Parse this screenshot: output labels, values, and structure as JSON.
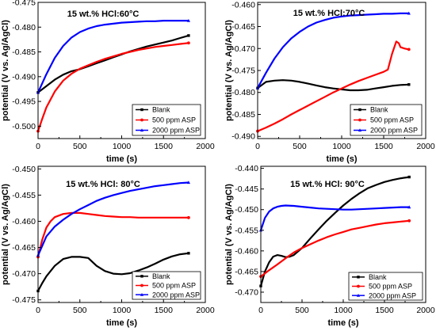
{
  "figure": {
    "colors": {
      "blank": "#000000",
      "asp500": "#ff0000",
      "asp2000": "#0000ff",
      "axis": "#000000"
    }
  },
  "chart_data": [
    {
      "type": "line",
      "title": "15 wt.% HCl:60°C",
      "xlabel": "time (s)",
      "ylabel": "potential (V vs. Ag/AgCl)",
      "xlim": [
        0,
        2000
      ],
      "ylim": [
        -0.5025,
        -0.475
      ],
      "xticks": [
        0,
        500,
        1000,
        1500,
        2000
      ],
      "yticks": [
        -0.5,
        -0.495,
        -0.49,
        -0.485,
        -0.48,
        -0.475
      ],
      "ytick_labels": [
        "-0.500",
        "-0.495",
        "-0.490",
        "-0.485",
        "-0.480",
        "-0.475"
      ],
      "legend_position": "bottom-right",
      "series": [
        {
          "name": "Blank",
          "color": "#000000",
          "x": [
            0,
            100,
            200,
            300,
            400,
            500,
            600,
            700,
            800,
            900,
            1000,
            1100,
            1200,
            1300,
            1400,
            1500,
            1600,
            1700,
            1800
          ],
          "y": [
            -0.4932,
            -0.4919,
            -0.4906,
            -0.4896,
            -0.4889,
            -0.4885,
            -0.4879,
            -0.4873,
            -0.4867,
            -0.4861,
            -0.4855,
            -0.4849,
            -0.4844,
            -0.4839,
            -0.4835,
            -0.4831,
            -0.4827,
            -0.4822,
            -0.4817
          ]
        },
        {
          "name": "500 ppm ASP",
          "color": "#ff0000",
          "x": [
            0,
            50,
            100,
            200,
            300,
            400,
            500,
            600,
            700,
            800,
            900,
            1000,
            1100,
            1200,
            1300,
            1400,
            1500,
            1600,
            1700,
            1800
          ],
          "y": [
            -0.501,
            -0.4985,
            -0.4962,
            -0.493,
            -0.4908,
            -0.4894,
            -0.4884,
            -0.4877,
            -0.487,
            -0.4864,
            -0.4859,
            -0.4854,
            -0.485,
            -0.4846,
            -0.4843,
            -0.484,
            -0.4838,
            -0.4836,
            -0.4834,
            -0.4832
          ]
        },
        {
          "name": "2000 ppm ASP",
          "color": "#0000ff",
          "x": [
            0,
            100,
            200,
            300,
            400,
            500,
            600,
            700,
            800,
            900,
            1000,
            1100,
            1200,
            1300,
            1400,
            1500,
            1600,
            1700,
            1800
          ],
          "y": [
            -0.4932,
            -0.4895,
            -0.4862,
            -0.4838,
            -0.4821,
            -0.481,
            -0.4803,
            -0.4798,
            -0.4795,
            -0.4793,
            -0.4791,
            -0.479,
            -0.4789,
            -0.4788,
            -0.4788,
            -0.4787,
            -0.4787,
            -0.4787,
            -0.4787
          ]
        }
      ]
    },
    {
      "type": "line",
      "title": "15 wt.% HCl:70°C",
      "xlabel": "time (s)",
      "ylabel": "potential (V vs. Ag/AgCl)",
      "xlim": [
        0,
        2000
      ],
      "ylim": [
        -0.4905,
        -0.4595
      ],
      "xticks": [
        0,
        500,
        1000,
        1500,
        2000
      ],
      "yticks": [
        -0.49,
        -0.485,
        -0.48,
        -0.475,
        -0.47,
        -0.465,
        -0.46
      ],
      "ytick_labels": [
        "-0.490",
        "-0.485",
        "-0.480",
        "-0.475",
        "-0.470",
        "-0.465",
        "-0.460"
      ],
      "legend_position": "bottom-right",
      "series": [
        {
          "name": "Blank",
          "color": "#000000",
          "x": [
            0,
            100,
            200,
            300,
            400,
            500,
            600,
            700,
            800,
            900,
            1000,
            1100,
            1200,
            1300,
            1400,
            1500,
            1600,
            1700,
            1800
          ],
          "y": [
            -0.479,
            -0.4776,
            -0.4773,
            -0.4772,
            -0.4773,
            -0.4776,
            -0.478,
            -0.4784,
            -0.4788,
            -0.4791,
            -0.4793,
            -0.4795,
            -0.4795,
            -0.4794,
            -0.4791,
            -0.4788,
            -0.4785,
            -0.4783,
            -0.4782
          ]
        },
        {
          "name": "500 ppm ASP",
          "color": "#ff0000",
          "x": [
            0,
            100,
            200,
            300,
            400,
            500,
            600,
            700,
            800,
            900,
            1000,
            1100,
            1200,
            1300,
            1400,
            1500,
            1550,
            1600,
            1650,
            1680,
            1700,
            1750,
            1800
          ],
          "y": [
            -0.4888,
            -0.488,
            -0.4871,
            -0.4861,
            -0.485,
            -0.484,
            -0.483,
            -0.482,
            -0.481,
            -0.48,
            -0.4791,
            -0.4782,
            -0.4774,
            -0.4767,
            -0.476,
            -0.4753,
            -0.4748,
            -0.4712,
            -0.4684,
            -0.4688,
            -0.4697,
            -0.47,
            -0.4702
          ]
        },
        {
          "name": "2000 ppm ASP",
          "color": "#0000ff",
          "x": [
            0,
            100,
            200,
            300,
            400,
            500,
            600,
            700,
            800,
            900,
            1000,
            1100,
            1200,
            1300,
            1400,
            1500,
            1600,
            1700,
            1800
          ],
          "y": [
            -0.479,
            -0.4755,
            -0.4723,
            -0.4697,
            -0.4677,
            -0.4662,
            -0.465,
            -0.4641,
            -0.4635,
            -0.463,
            -0.4627,
            -0.4625,
            -0.4624,
            -0.4623,
            -0.4622,
            -0.4621,
            -0.4621,
            -0.462,
            -0.462
          ]
        }
      ]
    },
    {
      "type": "line",
      "title": "15 wt.% HCl: 80°C",
      "xlabel": "time (s)",
      "ylabel": "potential (V vs. Ag/AgCl)",
      "xlim": [
        0,
        2000
      ],
      "ylim": [
        -0.4755,
        -0.4495
      ],
      "xticks": [
        0,
        500,
        1000,
        1500,
        2000
      ],
      "yticks": [
        -0.475,
        -0.47,
        -0.465,
        -0.46,
        -0.455,
        -0.45
      ],
      "ytick_labels": [
        "-0.475",
        "-0.470",
        "-0.465",
        "-0.460",
        "-0.455",
        "-0.450"
      ],
      "legend_position": "bottom-right",
      "series": [
        {
          "name": "Blank",
          "color": "#000000",
          "x": [
            0,
            50,
            100,
            200,
            300,
            400,
            500,
            600,
            700,
            800,
            900,
            1000,
            1100,
            1200,
            1300,
            1400,
            1500,
            1600,
            1700,
            1800
          ],
          "y": [
            -0.4733,
            -0.4718,
            -0.4705,
            -0.4685,
            -0.4672,
            -0.4668,
            -0.4668,
            -0.467,
            -0.4685,
            -0.4695,
            -0.47,
            -0.4701,
            -0.4699,
            -0.4694,
            -0.4688,
            -0.4681,
            -0.4673,
            -0.4667,
            -0.4663,
            -0.4661
          ]
        },
        {
          "name": "500 ppm ASP",
          "color": "#ff0000",
          "x": [
            0,
            50,
            100,
            150,
            200,
            300,
            400,
            500,
            600,
            700,
            800,
            900,
            1000,
            1100,
            1200,
            1300,
            1400,
            1500,
            1600,
            1700,
            1800
          ],
          "y": [
            -0.4668,
            -0.4635,
            -0.4612,
            -0.46,
            -0.4592,
            -0.4586,
            -0.4584,
            -0.4584,
            -0.4586,
            -0.4588,
            -0.459,
            -0.4591,
            -0.4592,
            -0.4592,
            -0.4593,
            -0.4593,
            -0.4593,
            -0.4593,
            -0.4593,
            -0.4593,
            -0.4593
          ]
        },
        {
          "name": "2000 ppm ASP",
          "color": "#0000ff",
          "x": [
            0,
            100,
            200,
            300,
            400,
            500,
            600,
            700,
            800,
            900,
            1000,
            1100,
            1200,
            1300,
            1400,
            1500,
            1600,
            1700,
            1800
          ],
          "y": [
            -0.4665,
            -0.4629,
            -0.461,
            -0.4597,
            -0.4586,
            -0.4577,
            -0.4569,
            -0.4561,
            -0.4555,
            -0.455,
            -0.4546,
            -0.4542,
            -0.4539,
            -0.4536,
            -0.4533,
            -0.4531,
            -0.4529,
            -0.4527,
            -0.4526
          ]
        }
      ]
    },
    {
      "type": "line",
      "title": "15 wt.% HCl: 90°C",
      "xlabel": "time (s)",
      "ylabel": "potential (V vs. Ag/AgCl)",
      "xlim": [
        0,
        2000
      ],
      "ylim": [
        -0.4725,
        -0.4395
      ],
      "xticks": [
        0,
        500,
        1000,
        1500,
        2000
      ],
      "yticks": [
        -0.47,
        -0.465,
        -0.46,
        -0.455,
        -0.45,
        -0.445,
        -0.44
      ],
      "ytick_labels": [
        "-0.470",
        "-0.465",
        "-0.460",
        "-0.455",
        "-0.450",
        "-0.445",
        "-0.440"
      ],
      "legend_position": "bottom-right",
      "series": [
        {
          "name": "Blank",
          "color": "#000000",
          "x": [
            0,
            50,
            100,
            150,
            200,
            250,
            300,
            350,
            400,
            500,
            600,
            700,
            800,
            900,
            1000,
            1100,
            1200,
            1300,
            1400,
            1500,
            1600,
            1700,
            1800
          ],
          "y": [
            -0.4685,
            -0.465,
            -0.4628,
            -0.4614,
            -0.461,
            -0.4612,
            -0.4615,
            -0.4614,
            -0.461,
            -0.4593,
            -0.457,
            -0.4548,
            -0.4527,
            -0.4508,
            -0.449,
            -0.4474,
            -0.446,
            -0.4448,
            -0.444,
            -0.4433,
            -0.4428,
            -0.4424,
            -0.4421
          ]
        },
        {
          "name": "500 ppm ASP",
          "color": "#ff0000",
          "x": [
            0,
            100,
            200,
            300,
            400,
            500,
            600,
            700,
            800,
            900,
            1000,
            1100,
            1200,
            1300,
            1400,
            1500,
            1600,
            1700,
            1800
          ],
          "y": [
            -0.4662,
            -0.4647,
            -0.4633,
            -0.4618,
            -0.4604,
            -0.4593,
            -0.4584,
            -0.4575,
            -0.4567,
            -0.456,
            -0.4554,
            -0.4548,
            -0.4544,
            -0.454,
            -0.4536,
            -0.4533,
            -0.4531,
            -0.4529,
            -0.4527
          ]
        },
        {
          "name": "2000 ppm ASP",
          "color": "#0000ff",
          "x": [
            0,
            50,
            100,
            150,
            200,
            250,
            300,
            400,
            500,
            600,
            700,
            800,
            900,
            1000,
            1100,
            1200,
            1300,
            1400,
            1500,
            1600,
            1700,
            1800
          ],
          "y": [
            -0.455,
            -0.452,
            -0.4505,
            -0.4497,
            -0.4493,
            -0.4491,
            -0.449,
            -0.4491,
            -0.4493,
            -0.4495,
            -0.4497,
            -0.4498,
            -0.4499,
            -0.45,
            -0.45,
            -0.4499,
            -0.4498,
            -0.4497,
            -0.4496,
            -0.4495,
            -0.4494,
            -0.4494
          ]
        }
      ]
    }
  ]
}
